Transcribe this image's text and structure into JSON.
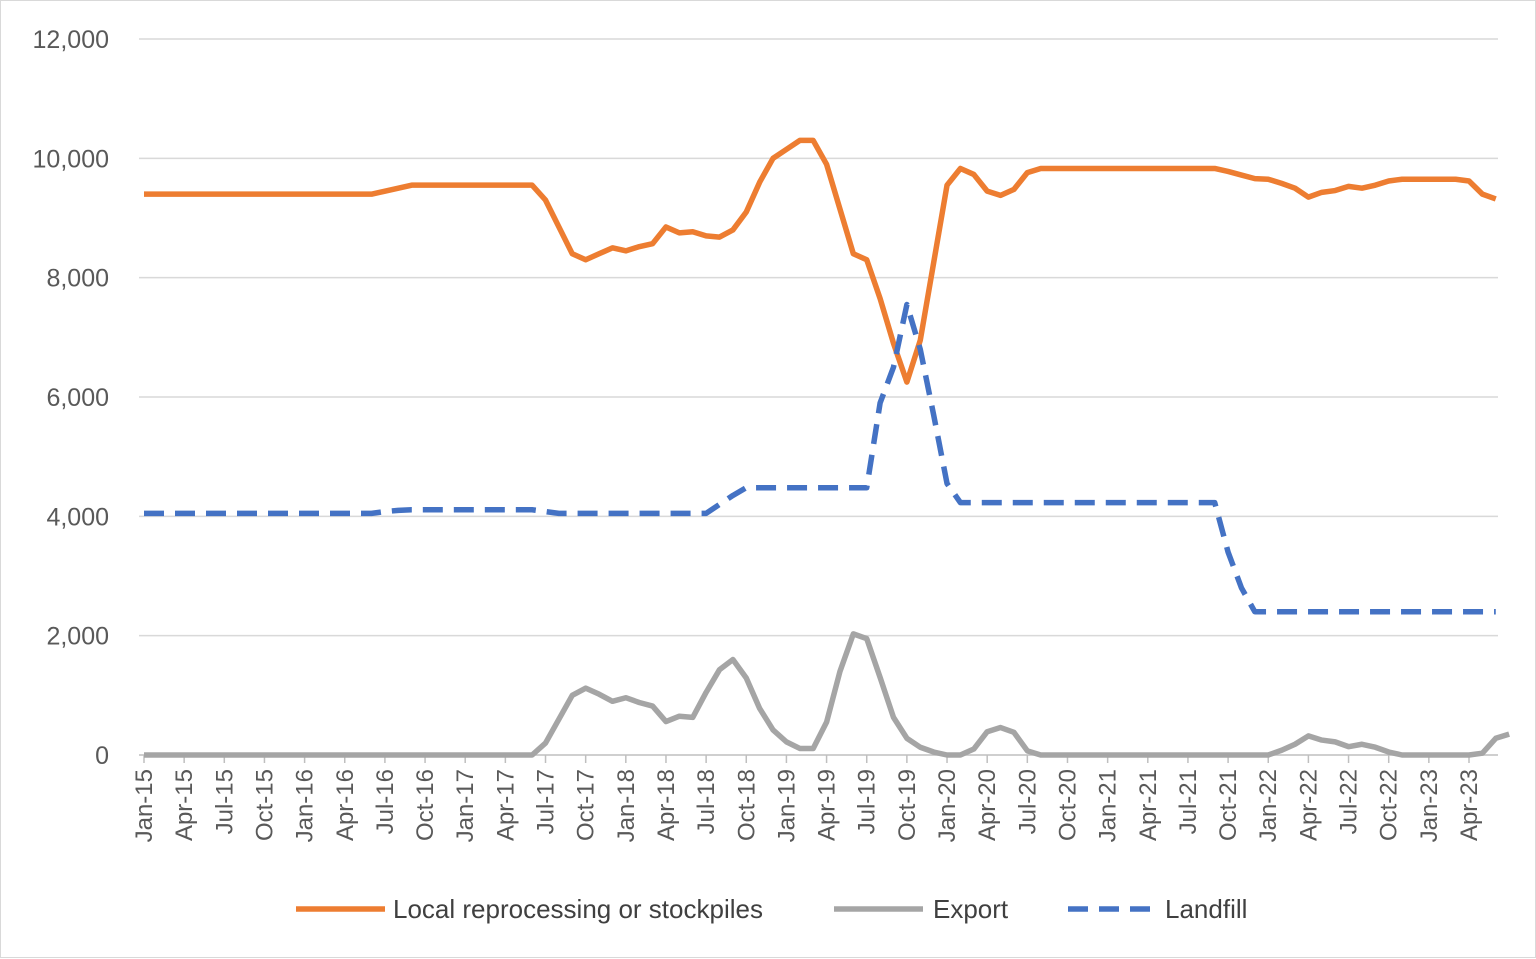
{
  "chart_data": {
    "type": "line",
    "title": "",
    "xlabel": "",
    "ylabel": "",
    "ylim": [
      0,
      12000
    ],
    "y_ticks": [
      0,
      2000,
      4000,
      6000,
      8000,
      10000,
      12000
    ],
    "y_tick_labels": [
      "0",
      "2,000",
      "4,000",
      "6,000",
      "8,000",
      "10,000",
      "12,000"
    ],
    "x_start": "Jan-15",
    "x_tick_labels": [
      "Jan-15",
      "Apr-15",
      "Jul-15",
      "Oct-15",
      "Jan-16",
      "Apr-16",
      "Jul-16",
      "Oct-16",
      "Jan-17",
      "Apr-17",
      "Jul-17",
      "Oct-17",
      "Jan-18",
      "Apr-18",
      "Jul-18",
      "Oct-18",
      "Jan-19",
      "Apr-19",
      "Jul-19",
      "Oct-19",
      "Jan-20",
      "Apr-20",
      "Jul-20",
      "Oct-20",
      "Jan-21",
      "Apr-21",
      "Jul-21",
      "Oct-21",
      "Jan-22",
      "Apr-22",
      "Jul-22",
      "Oct-22",
      "Jan-23",
      "Apr-23"
    ],
    "grid": true,
    "legend_position": "bottom",
    "series": [
      {
        "name": "Local reprocessing or stockpiles",
        "color": "#ED7D31",
        "dash": "solid",
        "values": [
          9400,
          9400,
          9400,
          9400,
          9400,
          9400,
          9400,
          9400,
          9400,
          9400,
          9400,
          9400,
          9400,
          9400,
          9400,
          9400,
          9400,
          9400,
          9450,
          9500,
          9550,
          9550,
          9550,
          9550,
          9550,
          9550,
          9550,
          9550,
          9550,
          9550,
          9300,
          8850,
          8400,
          8300,
          8400,
          8500,
          8450,
          8520,
          8570,
          8850,
          8750,
          8770,
          8700,
          8680,
          8800,
          9100,
          9600,
          10000,
          10150,
          10300,
          10300,
          9900,
          9150,
          8400,
          8300,
          7650,
          6900,
          6250,
          6950,
          8250,
          9550,
          9830,
          9730,
          9450,
          9380,
          9480,
          9760,
          9830,
          9830,
          9830,
          9830,
          9830,
          9830,
          9830,
          9830,
          9830,
          9830,
          9830,
          9830,
          9830,
          9830,
          9780,
          9720,
          9660,
          9650,
          9580,
          9500,
          9350,
          9430,
          9460,
          9530,
          9500,
          9550,
          9620,
          9650,
          9650,
          9650,
          9650,
          9650,
          9620,
          9400,
          9320
        ]
      },
      {
        "name": "Export",
        "color": "#A5A5A5",
        "dash": "solid",
        "values": [
          0,
          0,
          0,
          0,
          0,
          0,
          0,
          0,
          0,
          0,
          0,
          0,
          0,
          0,
          0,
          0,
          0,
          0,
          0,
          0,
          0,
          0,
          0,
          0,
          0,
          0,
          0,
          0,
          0,
          0,
          200,
          600,
          1000,
          1120,
          1020,
          900,
          960,
          880,
          820,
          560,
          650,
          630,
          1050,
          1430,
          1600,
          1290,
          780,
          420,
          220,
          110,
          110,
          550,
          1400,
          2030,
          1950,
          1300,
          630,
          280,
          130,
          50,
          0,
          0,
          100,
          390,
          460,
          380,
          70,
          0,
          0,
          0,
          0,
          0,
          0,
          0,
          0,
          0,
          0,
          0,
          0,
          0,
          0,
          0,
          0,
          0,
          0,
          80,
          180,
          320,
          250,
          220,
          140,
          180,
          130,
          50,
          0,
          0,
          0,
          0,
          0,
          0,
          30,
          280,
          350
        ]
      },
      {
        "name": "Landfill",
        "color": "#4472C4",
        "dash": "dashed",
        "values": [
          4050,
          4050,
          4050,
          4050,
          4050,
          4050,
          4050,
          4050,
          4050,
          4050,
          4050,
          4050,
          4050,
          4050,
          4050,
          4050,
          4050,
          4050,
          4080,
          4100,
          4110,
          4110,
          4110,
          4110,
          4110,
          4110,
          4110,
          4110,
          4110,
          4110,
          4080,
          4050,
          4050,
          4050,
          4050,
          4050,
          4050,
          4050,
          4050,
          4050,
          4050,
          4050,
          4050,
          4200,
          4350,
          4480,
          4480,
          4480,
          4480,
          4480,
          4480,
          4480,
          4480,
          4480,
          4480,
          5900,
          6500,
          7550,
          6800,
          5700,
          4550,
          4230,
          4230,
          4230,
          4230,
          4230,
          4230,
          4230,
          4230,
          4230,
          4230,
          4230,
          4230,
          4230,
          4230,
          4230,
          4230,
          4230,
          4230,
          4230,
          4230,
          3400,
          2800,
          2400,
          2400,
          2400,
          2400,
          2400,
          2400,
          2400,
          2400,
          2400,
          2400,
          2400,
          2400,
          2400,
          2400,
          2400,
          2400,
          2400,
          2400,
          2400
        ]
      }
    ]
  }
}
